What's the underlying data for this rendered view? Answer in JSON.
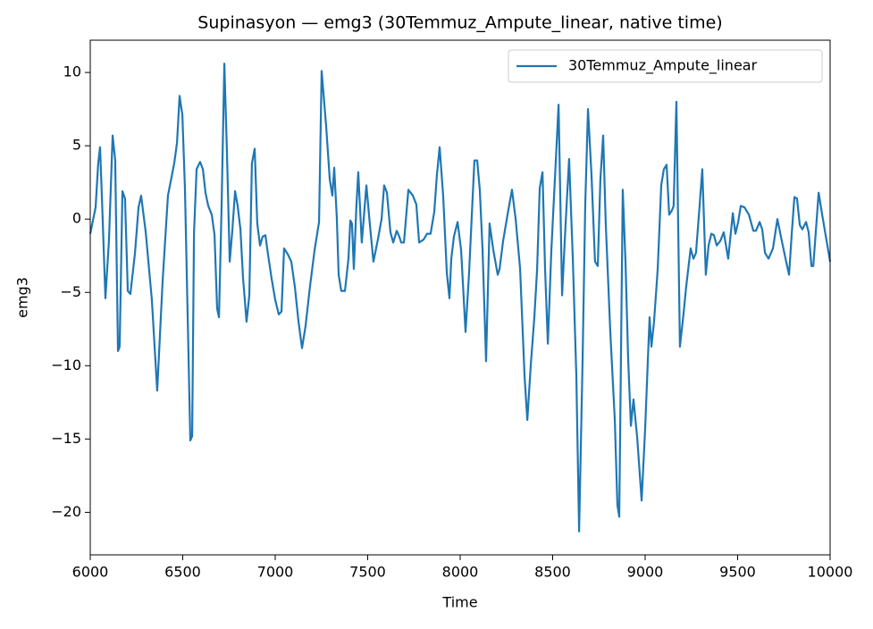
{
  "chart_data": {
    "type": "line",
    "title": "Supinasyon — emg3 (30Temmuz_Ampute_linear, native time)",
    "x_label": "Time",
    "y_label": "emg3",
    "legend": "upper right",
    "x": [
      6000,
      6029,
      6043,
      6053,
      6063,
      6082,
      6101,
      6121,
      6135,
      6150,
      6159,
      6174,
      6188,
      6203,
      6217,
      6242,
      6261,
      6275,
      6300,
      6333,
      6362,
      6391,
      6420,
      6454,
      6469,
      6483,
      6498,
      6512,
      6541,
      6551,
      6561,
      6575,
      6594,
      6609,
      6623,
      6638,
      6657,
      6672,
      6686,
      6696,
      6710,
      6725,
      6739,
      6754,
      6768,
      6783,
      6797,
      6812,
      6826,
      6845,
      6860,
      6874,
      6889,
      6903,
      6918,
      6932,
      6947,
      6961,
      6981,
      7000,
      7019,
      7034,
      7048,
      7068,
      7087,
      7106,
      7126,
      7145,
      7164,
      7188,
      7213,
      7237,
      7251,
      7275,
      7295,
      7309,
      7319,
      7333,
      7343,
      7357,
      7377,
      7396,
      7406,
      7415,
      7425,
      7439,
      7449,
      7468,
      7493,
      7512,
      7531,
      7555,
      7575,
      7589,
      7604,
      7623,
      7638,
      7657,
      7671,
      7681,
      7696,
      7720,
      7744,
      7763,
      7778,
      7802,
      7821,
      7840,
      7860,
      7874,
      7889,
      7908,
      7928,
      7942,
      7952,
      7966,
      7986,
      8005,
      8029,
      8048,
      8063,
      8077,
      8092,
      8106,
      8121,
      8140,
      8159,
      8179,
      8203,
      8213,
      8232,
      8256,
      8280,
      8300,
      8324,
      8348,
      8363,
      8382,
      8401,
      8416,
      8430,
      8445,
      8459,
      8474,
      8493,
      8512,
      8532,
      8551,
      8570,
      8589,
      8609,
      8628,
      8643,
      8662,
      8676,
      8691,
      8710,
      8729,
      8744,
      8758,
      8773,
      8787,
      8812,
      8836,
      8850,
      8860,
      8879,
      8894,
      8908,
      8923,
      8937,
      8957,
      8981,
      9000,
      9015,
      9024,
      9034,
      9048,
      9068,
      9087,
      9101,
      9116,
      9130,
      9145,
      9154,
      9169,
      9188,
      9208,
      9222,
      9246,
      9261,
      9275,
      9295,
      9309,
      9328,
      9343,
      9358,
      9372,
      9387,
      9406,
      9425,
      9449,
      9474,
      9488,
      9503,
      9517,
      9537,
      9561,
      9585,
      9599,
      9619,
      9633,
      9648,
      9667,
      9691,
      9715,
      9739,
      9764,
      9778,
      9792,
      9807,
      9821,
      9836,
      9850,
      9870,
      9884,
      9899,
      9909,
      9938,
      9957,
      10000
    ],
    "series": [
      {
        "name": "30Temmuz_Ampute_linear",
        "color": "#1f77b4",
        "values": [
          -1.0,
          0.8,
          3.8,
          4.9,
          1.5,
          -5.4,
          -1.5,
          5.7,
          4.0,
          -9.0,
          -8.7,
          1.9,
          1.4,
          -4.9,
          -5.1,
          -2.3,
          0.8,
          1.6,
          -0.9,
          -5.5,
          -11.7,
          -4.3,
          1.6,
          3.8,
          5.2,
          8.4,
          7.1,
          2.1,
          -15.1,
          -14.8,
          -0.9,
          3.4,
          3.9,
          3.4,
          1.8,
          0.9,
          0.3,
          -1.1,
          -6.1,
          -6.7,
          0.8,
          10.6,
          4.6,
          -2.9,
          -0.8,
          1.9,
          0.9,
          -0.7,
          -4.0,
          -7.0,
          -5.2,
          3.8,
          4.8,
          -0.3,
          -1.8,
          -1.2,
          -1.1,
          -2.4,
          -4.1,
          -5.5,
          -6.5,
          -6.3,
          -2.0,
          -2.4,
          -2.9,
          -4.6,
          -7.0,
          -8.8,
          -7.3,
          -4.6,
          -2.1,
          -0.2,
          10.1,
          6.4,
          2.7,
          1.6,
          3.5,
          0.1,
          -3.8,
          -4.9,
          -4.9,
          -2.7,
          -0.1,
          -0.3,
          -3.4,
          0.9,
          3.2,
          -1.6,
          2.3,
          -0.4,
          -2.9,
          -1.4,
          0.0,
          2.3,
          1.8,
          -0.9,
          -1.6,
          -0.8,
          -1.2,
          -1.6,
          -1.6,
          2.0,
          1.6,
          1.0,
          -1.6,
          -1.4,
          -1.0,
          -1.0,
          0.5,
          3.0,
          4.9,
          1.6,
          -3.7,
          -5.4,
          -2.7,
          -1.2,
          -0.2,
          -2.1,
          -7.7,
          -3.7,
          0.3,
          4.0,
          4.0,
          2.0,
          -2.1,
          -9.7,
          -0.3,
          -2.1,
          -3.8,
          -3.4,
          -1.5,
          0.3,
          2.0,
          0.0,
          -3.4,
          -10.7,
          -13.7,
          -9.9,
          -6.7,
          -3.4,
          2.1,
          3.2,
          -3.4,
          -8.5,
          -2.1,
          2.7,
          7.8,
          -5.2,
          -0.3,
          4.1,
          -2.7,
          -10.7,
          -21.3,
          -9.5,
          0.9,
          7.5,
          3.0,
          -2.9,
          -3.2,
          2.7,
          5.7,
          -0.3,
          -7.8,
          -13.7,
          -19.5,
          -20.3,
          2.0,
          -3.0,
          -9.5,
          -14.1,
          -12.3,
          -14.9,
          -19.2,
          -14.3,
          -9.5,
          -6.7,
          -8.7,
          -7.0,
          -3.4,
          2.3,
          3.4,
          3.7,
          0.3,
          0.6,
          0.9,
          8.0,
          -8.7,
          -6.4,
          -4.6,
          -2.0,
          -2.7,
          -2.3,
          1.0,
          3.4,
          -3.8,
          -1.8,
          -1.0,
          -1.1,
          -1.8,
          -1.5,
          -0.9,
          -2.7,
          0.4,
          -1.0,
          -0.2,
          0.9,
          0.8,
          0.3,
          -0.8,
          -0.8,
          -0.2,
          -0.7,
          -2.3,
          -2.7,
          -2.0,
          0.0,
          -1.5,
          -3.0,
          -3.8,
          -1.1,
          1.5,
          1.4,
          -0.4,
          -0.7,
          -0.2,
          -0.9,
          -3.2,
          -3.2,
          1.8,
          0.3,
          -2.9
        ]
      }
    ],
    "xlim": [
      6000,
      10000
    ],
    "xticks": [
      6000,
      6500,
      7000,
      7500,
      8000,
      8500,
      9000,
      9500,
      10000
    ],
    "ylim": [
      -22.9,
      12.2
    ],
    "yticks": [
      {
        "value": -20,
        "label": "−20"
      },
      {
        "value": -15,
        "label": "−15"
      },
      {
        "value": -10,
        "label": "−10"
      },
      {
        "value": -5,
        "label": "−5"
      },
      0,
      5,
      10
    ]
  }
}
